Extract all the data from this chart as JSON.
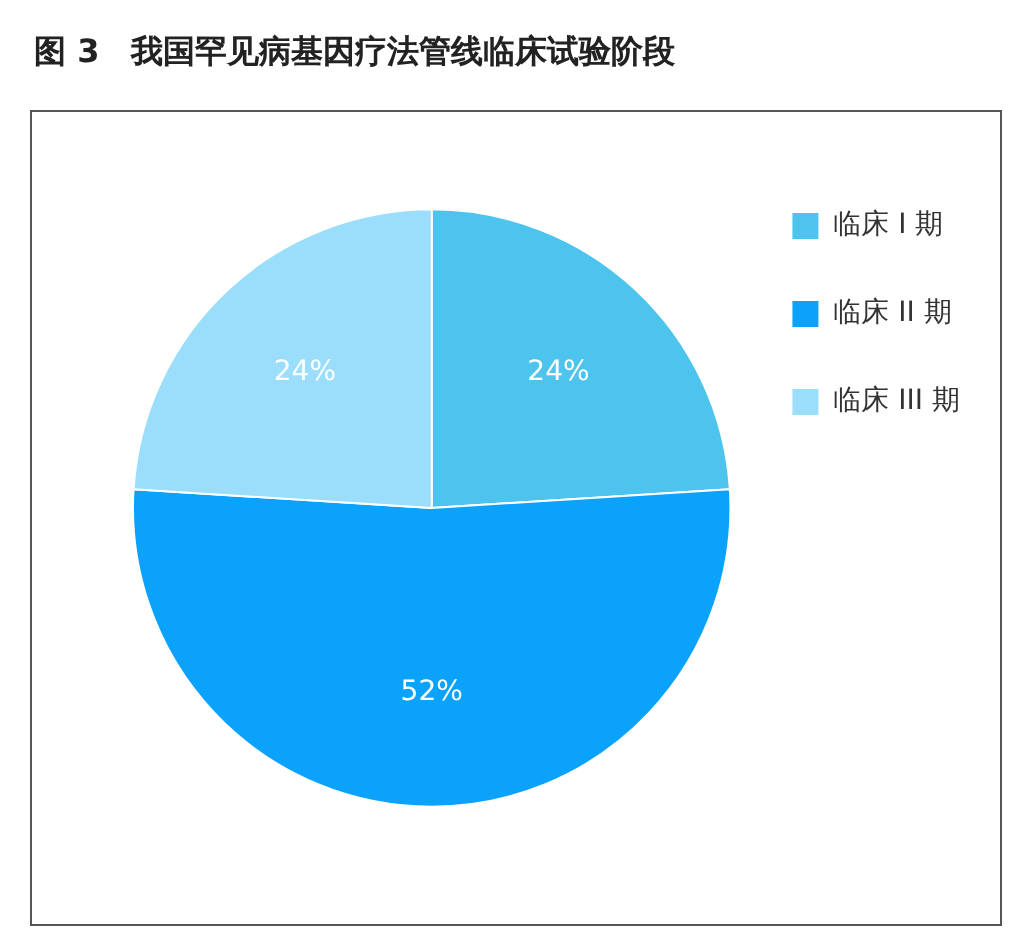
{
  "chart_data": {
    "type": "pie",
    "title": "图 3　我国罕见病基因疗法管线临床试验阶段",
    "categories": [
      "临床 I 期",
      "临床 II 期",
      "临床 III 期"
    ],
    "values": [
      24,
      52,
      24
    ],
    "colors": [
      "#4cc4ee",
      "#0aa2fa",
      "#9adefc"
    ],
    "value_labels": [
      "24%",
      "52%",
      "24%"
    ],
    "legend": "top right"
  }
}
